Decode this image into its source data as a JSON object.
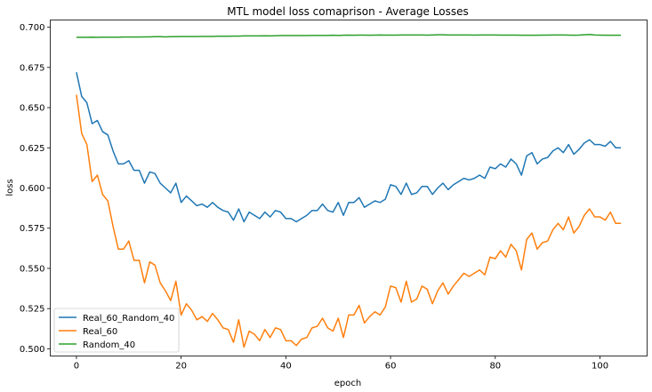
{
  "chart_data": {
    "type": "line",
    "title": "MTL model loss comaprison - Average Losses",
    "xlabel": "epoch",
    "ylabel": "loss",
    "xlim": [
      -5,
      109
    ],
    "ylim": [
      0.4955,
      0.7045
    ],
    "xticks": [
      0,
      20,
      40,
      60,
      80,
      100
    ],
    "yticks": [
      0.5,
      0.525,
      0.55,
      0.575,
      0.6,
      0.625,
      0.65,
      0.675,
      0.7
    ],
    "xtick_labels": [
      "0",
      "20",
      "40",
      "60",
      "80",
      "100"
    ],
    "ytick_labels": [
      "0.500",
      "0.525",
      "0.550",
      "0.575",
      "0.600",
      "0.625",
      "0.650",
      "0.675",
      "0.700"
    ],
    "grid": false,
    "legend_position": "lower-left",
    "series": [
      {
        "name": "Real_60_Random_40",
        "color": "#1f77b4",
        "values": [
          0.672,
          0.657,
          0.653,
          0.64,
          0.642,
          0.635,
          0.633,
          0.623,
          0.615,
          0.615,
          0.617,
          0.611,
          0.611,
          0.603,
          0.61,
          0.609,
          0.603,
          0.6,
          0.597,
          0.603,
          0.591,
          0.595,
          0.592,
          0.589,
          0.59,
          0.588,
          0.591,
          0.588,
          0.586,
          0.585,
          0.58,
          0.587,
          0.579,
          0.585,
          0.583,
          0.581,
          0.585,
          0.582,
          0.586,
          0.585,
          0.581,
          0.581,
          0.579,
          0.581,
          0.583,
          0.586,
          0.586,
          0.59,
          0.586,
          0.585,
          0.591,
          0.583,
          0.591,
          0.591,
          0.594,
          0.588,
          0.59,
          0.592,
          0.591,
          0.593,
          0.602,
          0.601,
          0.596,
          0.603,
          0.596,
          0.597,
          0.601,
          0.601,
          0.596,
          0.6,
          0.603,
          0.599,
          0.602,
          0.604,
          0.606,
          0.605,
          0.606,
          0.608,
          0.606,
          0.613,
          0.612,
          0.615,
          0.613,
          0.618,
          0.615,
          0.608,
          0.62,
          0.622,
          0.615,
          0.618,
          0.619,
          0.623,
          0.625,
          0.622,
          0.627,
          0.621,
          0.624,
          0.628,
          0.63,
          0.627,
          0.627,
          0.626,
          0.629,
          0.625,
          0.625
        ]
      },
      {
        "name": "Real_60",
        "color": "#ff7f0e",
        "values": [
          0.658,
          0.634,
          0.627,
          0.604,
          0.608,
          0.596,
          0.592,
          0.576,
          0.562,
          0.562,
          0.567,
          0.555,
          0.555,
          0.541,
          0.554,
          0.552,
          0.541,
          0.536,
          0.53,
          0.542,
          0.521,
          0.528,
          0.524,
          0.518,
          0.52,
          0.517,
          0.522,
          0.518,
          0.513,
          0.512,
          0.504,
          0.518,
          0.501,
          0.511,
          0.509,
          0.505,
          0.512,
          0.507,
          0.513,
          0.512,
          0.505,
          0.505,
          0.502,
          0.506,
          0.507,
          0.513,
          0.514,
          0.519,
          0.513,
          0.511,
          0.519,
          0.507,
          0.521,
          0.521,
          0.527,
          0.516,
          0.52,
          0.523,
          0.521,
          0.526,
          0.539,
          0.538,
          0.529,
          0.542,
          0.529,
          0.531,
          0.539,
          0.537,
          0.528,
          0.536,
          0.541,
          0.534,
          0.539,
          0.543,
          0.547,
          0.545,
          0.547,
          0.549,
          0.546,
          0.557,
          0.556,
          0.561,
          0.557,
          0.565,
          0.561,
          0.549,
          0.568,
          0.572,
          0.562,
          0.566,
          0.567,
          0.574,
          0.578,
          0.574,
          0.582,
          0.572,
          0.576,
          0.583,
          0.587,
          0.582,
          0.582,
          0.58,
          0.585,
          0.578,
          0.578
        ]
      },
      {
        "name": "Random_40",
        "color": "#2ca02c",
        "values": [
          0.6937,
          0.6937,
          0.6937,
          0.6938,
          0.6937,
          0.6938,
          0.6938,
          0.6938,
          0.6938,
          0.6939,
          0.6939,
          0.6939,
          0.6939,
          0.694,
          0.694,
          0.6941,
          0.6941,
          0.694,
          0.6941,
          0.6941,
          0.6942,
          0.6942,
          0.6942,
          0.6942,
          0.6943,
          0.6943,
          0.6943,
          0.6944,
          0.6944,
          0.6944,
          0.6945,
          0.6945,
          0.6946,
          0.6946,
          0.6946,
          0.6946,
          0.6947,
          0.6946,
          0.6947,
          0.6948,
          0.6948,
          0.6948,
          0.6948,
          0.6948,
          0.6948,
          0.6949,
          0.6949,
          0.6949,
          0.6949,
          0.695,
          0.6949,
          0.695,
          0.6951,
          0.695,
          0.6951,
          0.6951,
          0.695,
          0.6951,
          0.6952,
          0.6951,
          0.6951,
          0.6951,
          0.6952,
          0.6952,
          0.6952,
          0.6952,
          0.6952,
          0.6951,
          0.6952,
          0.6953,
          0.6953,
          0.6952,
          0.6952,
          0.6952,
          0.6952,
          0.6952,
          0.6951,
          0.6952,
          0.6952,
          0.6952,
          0.6952,
          0.6951,
          0.6951,
          0.6951,
          0.6951,
          0.695,
          0.695,
          0.695,
          0.695,
          0.6951,
          0.6951,
          0.6952,
          0.6952,
          0.6952,
          0.6951,
          0.695,
          0.6951,
          0.6953,
          0.6955,
          0.6952,
          0.6951,
          0.695,
          0.695,
          0.695,
          0.695
        ]
      }
    ]
  }
}
